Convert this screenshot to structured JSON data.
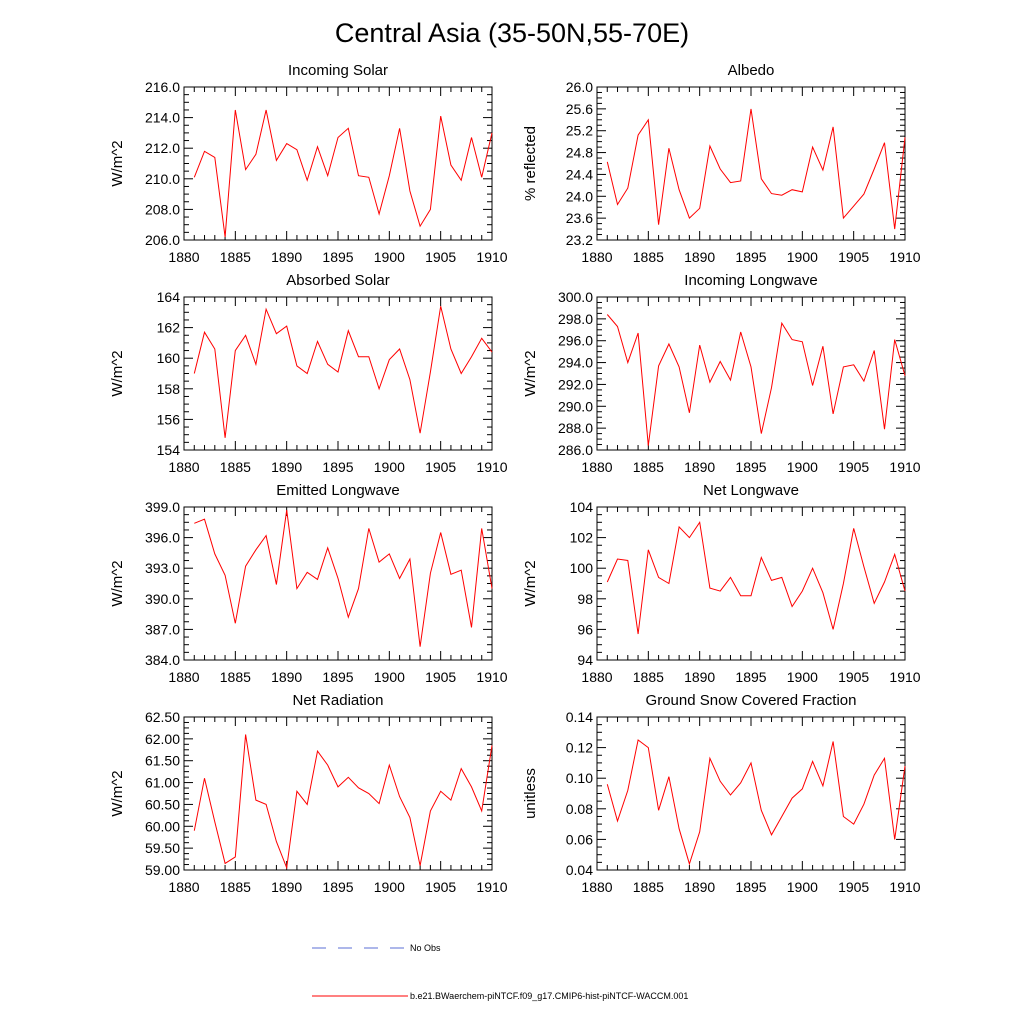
{
  "figure": {
    "title": "Central Asia (35-50N,55-70E)",
    "legend": [
      {
        "label": "No Obs",
        "color": "#5b6fd6",
        "style": "dashed"
      },
      {
        "label": "b.e21.BWaerchem-piNTCF.f09_g17.CMIP6-hist-piNTCF-WACCM.001",
        "color": "#ff0000",
        "style": "solid"
      }
    ]
  },
  "chart_data": [
    {
      "type": "line",
      "title": "Incoming Solar",
      "ylabel": "W/m^2",
      "xlim": [
        1880,
        1910
      ],
      "ylim": [
        206.0,
        216.0
      ],
      "xticks": [
        "1880",
        "1885",
        "1890",
        "1895",
        "1900",
        "1905",
        "1910"
      ],
      "yticks": [
        "206.0",
        "208.0",
        "210.0",
        "212.0",
        "214.0",
        "216.0"
      ],
      "x": [
        1881,
        1882,
        1883,
        1884,
        1885,
        1886,
        1887,
        1888,
        1889,
        1890,
        1891,
        1892,
        1893,
        1894,
        1895,
        1896,
        1897,
        1898,
        1899,
        1900,
        1901,
        1902,
        1903,
        1904,
        1905,
        1906,
        1907,
        1908,
        1909,
        1910
      ],
      "values": [
        210.1,
        211.8,
        211.4,
        206.2,
        214.5,
        210.6,
        211.6,
        214.5,
        211.2,
        212.3,
        211.9,
        209.9,
        212.1,
        210.2,
        212.7,
        213.3,
        210.2,
        210.1,
        207.7,
        210.2,
        213.3,
        209.2,
        206.9,
        208.0,
        214.1,
        210.9,
        209.9,
        212.7,
        210.1,
        213.0
      ],
      "color": "#ff0000"
    },
    {
      "type": "line",
      "title": "Albedo",
      "ylabel": "% reflected",
      "xlim": [
        1880,
        1910
      ],
      "ylim": [
        23.2,
        26.0
      ],
      "xticks": [
        "1880",
        "1885",
        "1890",
        "1895",
        "1900",
        "1905",
        "1910"
      ],
      "yticks": [
        "23.2",
        "23.6",
        "24.0",
        "24.4",
        "24.8",
        "25.2",
        "25.6",
        "26.0"
      ],
      "x": [
        1881,
        1882,
        1883,
        1884,
        1885,
        1886,
        1887,
        1888,
        1889,
        1890,
        1891,
        1892,
        1893,
        1894,
        1895,
        1896,
        1897,
        1898,
        1899,
        1900,
        1901,
        1902,
        1903,
        1904,
        1905,
        1906,
        1907,
        1908,
        1909,
        1910
      ],
      "values": [
        24.63,
        23.85,
        24.15,
        25.12,
        25.4,
        23.48,
        24.88,
        24.12,
        23.6,
        23.78,
        24.92,
        24.5,
        24.25,
        24.28,
        25.6,
        24.32,
        24.05,
        24.02,
        24.12,
        24.08,
        24.9,
        24.48,
        25.27,
        23.6,
        23.82,
        24.04,
        24.5,
        24.98,
        23.4,
        25.08
      ],
      "color": "#ff0000"
    },
    {
      "type": "line",
      "title": "Absorbed Solar",
      "ylabel": "W/m^2",
      "xlim": [
        1880,
        1910
      ],
      "ylim": [
        154,
        164
      ],
      "xticks": [
        "1880",
        "1885",
        "1890",
        "1895",
        "1900",
        "1905",
        "1910"
      ],
      "yticks": [
        "154",
        "156",
        "158",
        "160",
        "162",
        "164"
      ],
      "x": [
        1881,
        1882,
        1883,
        1884,
        1885,
        1886,
        1887,
        1888,
        1889,
        1890,
        1891,
        1892,
        1893,
        1894,
        1895,
        1896,
        1897,
        1898,
        1899,
        1900,
        1901,
        1902,
        1903,
        1904,
        1905,
        1906,
        1907,
        1908,
        1909,
        1910
      ],
      "values": [
        159.0,
        161.7,
        160.6,
        154.8,
        160.5,
        161.5,
        159.6,
        163.2,
        161.6,
        162.1,
        159.5,
        159.0,
        161.1,
        159.6,
        159.1,
        161.8,
        160.1,
        160.1,
        158.0,
        159.9,
        160.6,
        158.6,
        155.1,
        159.1,
        163.4,
        160.6,
        159.0,
        160.1,
        161.3,
        160.4
      ],
      "color": "#ff0000"
    },
    {
      "type": "line",
      "title": "Incoming Longwave",
      "ylabel": "W/m^2",
      "xlim": [
        1880,
        1910
      ],
      "ylim": [
        286.0,
        300.0
      ],
      "xticks": [
        "1880",
        "1885",
        "1890",
        "1895",
        "1900",
        "1905",
        "1910"
      ],
      "yticks": [
        "286.0",
        "288.0",
        "290.0",
        "292.0",
        "294.0",
        "296.0",
        "298.0",
        "300.0"
      ],
      "x": [
        1881,
        1882,
        1883,
        1884,
        1885,
        1886,
        1887,
        1888,
        1889,
        1890,
        1891,
        1892,
        1893,
        1894,
        1895,
        1896,
        1897,
        1898,
        1899,
        1900,
        1901,
        1902,
        1903,
        1904,
        1905,
        1906,
        1907,
        1908,
        1909,
        1910
      ],
      "values": [
        298.4,
        297.3,
        294.0,
        296.7,
        286.4,
        293.7,
        295.7,
        293.6,
        289.4,
        295.6,
        292.2,
        294.1,
        292.4,
        296.8,
        293.6,
        287.5,
        291.7,
        297.6,
        296.1,
        295.9,
        291.9,
        295.5,
        289.3,
        293.6,
        293.8,
        292.3,
        295.1,
        287.9,
        296.1,
        292.8
      ],
      "color": "#ff0000"
    },
    {
      "type": "line",
      "title": "Emitted Longwave",
      "ylabel": "W/m^2",
      "xlim": [
        1880,
        1910
      ],
      "ylim": [
        384.0,
        399.0
      ],
      "xticks": [
        "1880",
        "1885",
        "1890",
        "1895",
        "1900",
        "1905",
        "1910"
      ],
      "yticks": [
        "384.0",
        "387.0",
        "390.0",
        "393.0",
        "396.0",
        "399.0"
      ],
      "x": [
        1881,
        1882,
        1883,
        1884,
        1885,
        1886,
        1887,
        1888,
        1889,
        1890,
        1891,
        1892,
        1893,
        1894,
        1895,
        1896,
        1897,
        1898,
        1899,
        1900,
        1901,
        1902,
        1903,
        1904,
        1905,
        1906,
        1907,
        1908,
        1909,
        1910
      ],
      "values": [
        397.4,
        397.8,
        394.4,
        392.3,
        387.6,
        393.2,
        394.8,
        396.2,
        391.4,
        398.7,
        391.0,
        392.6,
        391.9,
        395.0,
        392.0,
        388.2,
        391.0,
        396.9,
        393.6,
        394.4,
        392.0,
        393.9,
        385.3,
        392.5,
        396.5,
        392.4,
        392.8,
        387.2,
        396.9,
        391.0
      ],
      "color": "#ff0000"
    },
    {
      "type": "line",
      "title": "Net Longwave",
      "ylabel": "W/m^2",
      "xlim": [
        1880,
        1910
      ],
      "ylim": [
        94,
        104
      ],
      "xticks": [
        "1880",
        "1885",
        "1890",
        "1895",
        "1900",
        "1905",
        "1910"
      ],
      "yticks": [
        "94",
        "96",
        "98",
        "100",
        "102",
        "104"
      ],
      "x": [
        1881,
        1882,
        1883,
        1884,
        1885,
        1886,
        1887,
        1888,
        1889,
        1890,
        1891,
        1892,
        1893,
        1894,
        1895,
        1896,
        1897,
        1898,
        1899,
        1900,
        1901,
        1902,
        1903,
        1904,
        1905,
        1906,
        1907,
        1908,
        1909,
        1910
      ],
      "values": [
        99.1,
        100.6,
        100.5,
        95.7,
        101.2,
        99.4,
        99.0,
        102.7,
        102.0,
        103.0,
        98.7,
        98.5,
        99.4,
        98.2,
        98.2,
        100.7,
        99.2,
        99.4,
        97.5,
        98.5,
        100.0,
        98.4,
        96.0,
        99.0,
        102.6,
        100.1,
        97.7,
        99.1,
        100.9,
        98.5
      ],
      "color": "#ff0000"
    },
    {
      "type": "line",
      "title": "Net Radiation",
      "ylabel": "W/m^2",
      "xlim": [
        1880,
        1910
      ],
      "ylim": [
        59.0,
        62.5
      ],
      "xticks": [
        "1880",
        "1885",
        "1890",
        "1895",
        "1900",
        "1905",
        "1910"
      ],
      "yticks": [
        "59.00",
        "59.50",
        "60.00",
        "60.50",
        "61.00",
        "61.50",
        "62.00",
        "62.50"
      ],
      "x": [
        1881,
        1882,
        1883,
        1884,
        1885,
        1886,
        1887,
        1888,
        1889,
        1890,
        1891,
        1892,
        1893,
        1894,
        1895,
        1896,
        1897,
        1898,
        1899,
        1900,
        1901,
        1902,
        1903,
        1904,
        1905,
        1906,
        1907,
        1908,
        1909,
        1910
      ],
      "values": [
        59.9,
        61.1,
        60.1,
        59.15,
        59.3,
        62.1,
        60.6,
        60.5,
        59.65,
        59.05,
        60.8,
        60.5,
        61.72,
        61.4,
        60.9,
        61.12,
        60.88,
        60.75,
        60.52,
        61.4,
        60.68,
        60.2,
        59.1,
        60.35,
        60.8,
        60.6,
        61.32,
        60.9,
        60.35,
        61.85
      ],
      "color": "#ff0000"
    },
    {
      "type": "line",
      "title": "Ground Snow Covered Fraction",
      "ylabel": "unitless",
      "xlim": [
        1880,
        1910
      ],
      "ylim": [
        0.04,
        0.14
      ],
      "xticks": [
        "1880",
        "1885",
        "1890",
        "1895",
        "1900",
        "1905",
        "1910"
      ],
      "yticks": [
        "0.04",
        "0.06",
        "0.08",
        "0.10",
        "0.12",
        "0.14"
      ],
      "x": [
        1881,
        1882,
        1883,
        1884,
        1885,
        1886,
        1887,
        1888,
        1889,
        1890,
        1891,
        1892,
        1893,
        1894,
        1895,
        1896,
        1897,
        1898,
        1899,
        1900,
        1901,
        1902,
        1903,
        1904,
        1905,
        1906,
        1907,
        1908,
        1909,
        1910
      ],
      "values": [
        0.096,
        0.072,
        0.092,
        0.125,
        0.12,
        0.079,
        0.101,
        0.067,
        0.044,
        0.065,
        0.113,
        0.098,
        0.089,
        0.097,
        0.11,
        0.079,
        0.063,
        0.075,
        0.087,
        0.093,
        0.111,
        0.095,
        0.124,
        0.075,
        0.07,
        0.083,
        0.102,
        0.113,
        0.06,
        0.108
      ],
      "color": "#ff0000"
    }
  ]
}
